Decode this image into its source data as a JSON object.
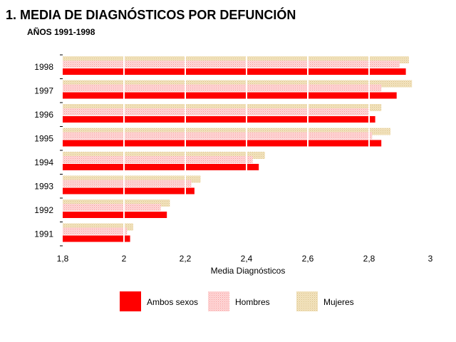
{
  "header": {
    "title": "1. MEDIA DE DIAGNÓSTICOS POR DEFUNCIÓN",
    "subtitle": "AÑOS 1991-1998"
  },
  "chart_data": {
    "type": "bar",
    "orientation": "horizontal",
    "title": "1. MEDIA DE DIAGNÓSTICOS POR DEFUNCIÓN",
    "subtitle": "AÑOS 1991-1998",
    "xlabel": "Media Diagnósticos",
    "ylabel": "",
    "xlim": [
      1.8,
      3.0
    ],
    "xticks": [
      "1,8",
      "2",
      "2,2",
      "2,4",
      "2,6",
      "2,8",
      "3"
    ],
    "grid": "vertical",
    "legend_position": "bottom",
    "categories": [
      "1998",
      "1997",
      "1996",
      "1995",
      "1994",
      "1993",
      "1992",
      "1991"
    ],
    "series": [
      {
        "name": "Mujeres",
        "color": "#f0dcaa",
        "values": [
          2.93,
          2.94,
          2.84,
          2.87,
          2.46,
          2.25,
          2.15,
          2.03
        ]
      },
      {
        "name": "Hombres",
        "color": "#ffc0c0",
        "values": [
          2.9,
          2.84,
          2.8,
          2.81,
          2.42,
          2.22,
          2.12,
          2.01
        ]
      },
      {
        "name": "Ambos sexos",
        "color": "#ff0000",
        "values": [
          2.92,
          2.89,
          2.82,
          2.84,
          2.44,
          2.23,
          2.14,
          2.02
        ]
      }
    ],
    "legend": [
      "Ambos sexos",
      "Hombres",
      "Mujeres"
    ]
  }
}
